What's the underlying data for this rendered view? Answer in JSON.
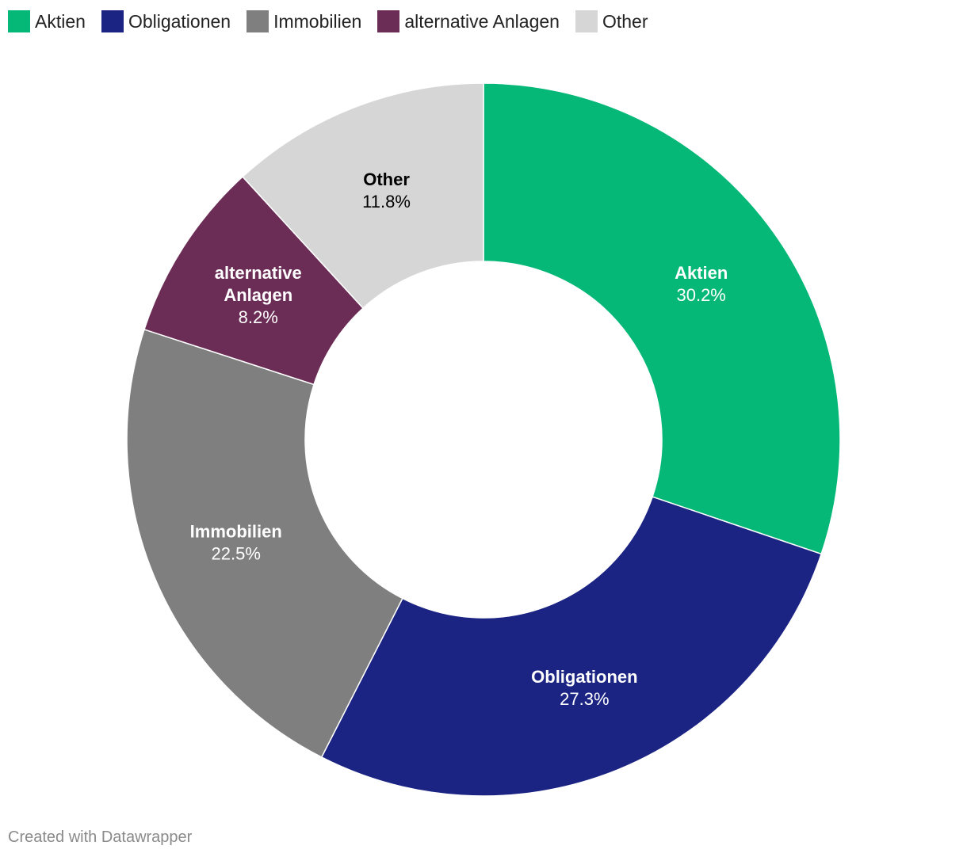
{
  "chart_data": {
    "type": "pie",
    "variant": "donut",
    "legend_position": "top-left",
    "slices": [
      {
        "label": "Aktien",
        "label_lines": [
          "Aktien"
        ],
        "value": 30.2,
        "display": "30.2%",
        "color": "#05b877",
        "text_color": "#ffffff"
      },
      {
        "label": "Obligationen",
        "label_lines": [
          "Obligationen"
        ],
        "value": 27.3,
        "display": "27.3%",
        "color": "#1b2383",
        "text_color": "#ffffff"
      },
      {
        "label": "Immobilien",
        "label_lines": [
          "Immobilien"
        ],
        "value": 22.5,
        "display": "22.5%",
        "color": "#7f7f7f",
        "text_color": "#ffffff"
      },
      {
        "label": "alternative Anlagen",
        "label_lines": [
          "alternative",
          "Anlagen"
        ],
        "value": 8.2,
        "display": "8.2%",
        "color": "#6b2c55",
        "text_color": "#ffffff"
      },
      {
        "label": "Other",
        "label_lines": [
          "Other"
        ],
        "value": 11.8,
        "display": "11.8%",
        "color": "#d6d6d6",
        "text_color": "#000000"
      }
    ]
  },
  "footer": {
    "credit": "Created with Datawrapper"
  }
}
